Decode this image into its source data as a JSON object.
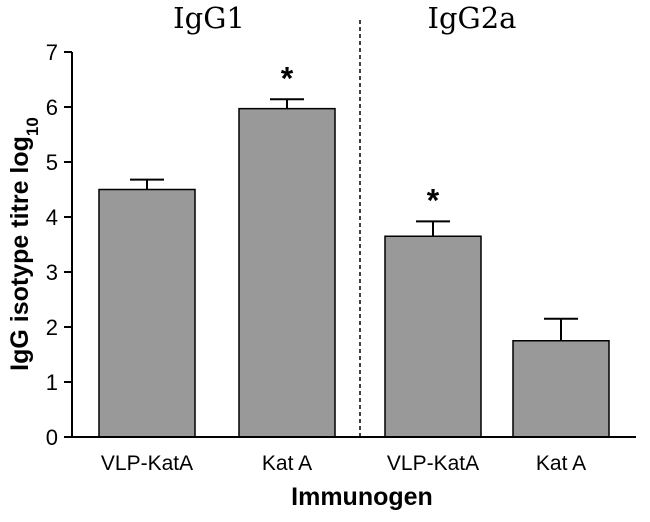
{
  "chart_data": {
    "type": "bar",
    "groups": [
      "IgG1",
      "IgG2a"
    ],
    "categories": [
      "VLP-KatA",
      "Kat A",
      "VLP-KatA",
      "Kat A"
    ],
    "values": [
      4.5,
      5.97,
      3.65,
      1.75
    ],
    "errors": [
      0.18,
      0.17,
      0.27,
      0.4
    ],
    "significance": [
      "",
      "*",
      "*",
      ""
    ],
    "xlabel": "Immunogen",
    "ylabel_main": "IgG isotype titre log",
    "ylabel_subscript": "10",
    "ylim": [
      0,
      7
    ],
    "yticks": [
      "0",
      "1",
      "2",
      "3",
      "4",
      "5",
      "6",
      "7"
    ],
    "grid": false,
    "group_divider": "dashed",
    "colors": {
      "bar_fill": "#999999",
      "bar_stroke": "#000000",
      "axis": "#000000"
    }
  }
}
